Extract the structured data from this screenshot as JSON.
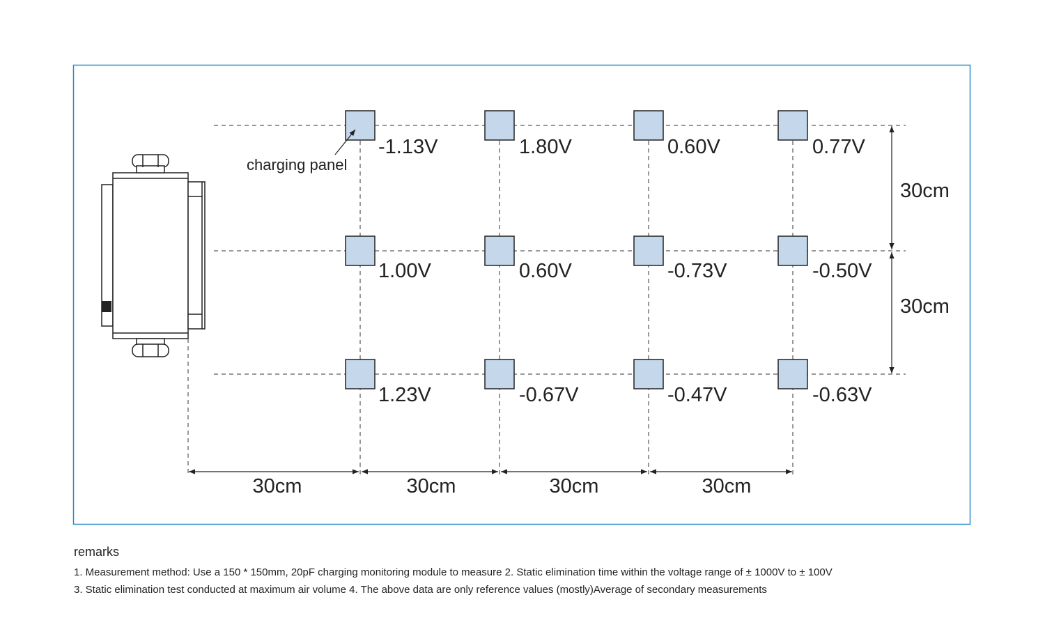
{
  "colors": {
    "frame": "#2a8dc8",
    "panel_fill": "#c5d7ea",
    "line": "#222222"
  },
  "callout": {
    "text": "charging panel"
  },
  "readings": [
    [
      "-1.13V",
      "1.80V",
      "0.60V",
      "0.77V"
    ],
    [
      "1.00V",
      "0.60V",
      "-0.73V",
      "-0.50V"
    ],
    [
      "1.23V",
      "-0.67V",
      "-0.47V",
      "-0.63V"
    ]
  ],
  "dimensions": {
    "horizontal": [
      "30cm",
      "30cm",
      "30cm",
      "30cm"
    ],
    "vertical": [
      "30cm",
      "30cm"
    ]
  },
  "remarks": {
    "title": "remarks",
    "line1": "1. Measurement method: Use a 150 * 150mm, 20pF charging monitoring module to measure 2. Static elimination time within the voltage range of ± 1000V to ± 100V",
    "line2": "3. Static elimination test conducted at maximum air volume 4. The above data are only reference values (mostly)Average of secondary measurements"
  }
}
